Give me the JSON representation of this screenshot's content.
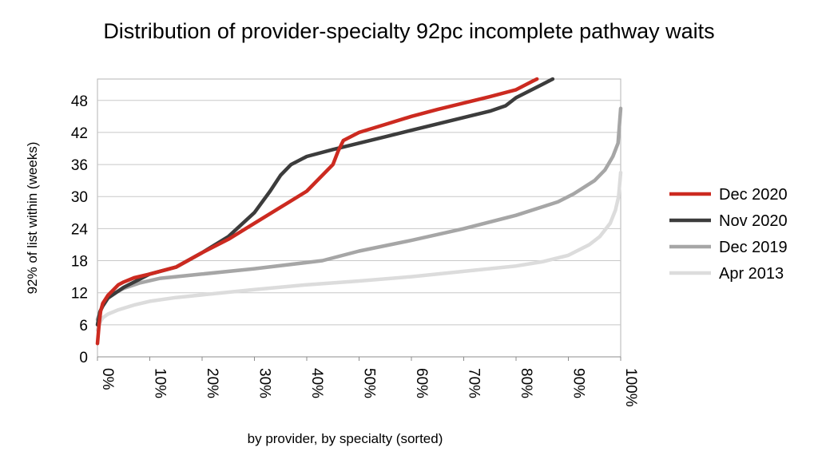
{
  "chart_data": {
    "type": "line",
    "title": "Distribution of provider-specialty 92pc incomplete pathway waits",
    "xlabel": "by provider, by specialty (sorted)",
    "ylabel": "92% of list within (weeks)",
    "xlim": [
      0,
      100
    ],
    "ylim": [
      0,
      52
    ],
    "x_ticks": [
      0,
      10,
      20,
      30,
      40,
      50,
      60,
      70,
      80,
      90,
      100
    ],
    "x_tick_labels": [
      "0%",
      "10%",
      "20%",
      "30%",
      "40%",
      "50%",
      "60%",
      "70%",
      "80%",
      "90%",
      "100%"
    ],
    "y_ticks": [
      0,
      6,
      12,
      18,
      24,
      30,
      36,
      42,
      48
    ],
    "y_tick_labels": [
      "0",
      "6",
      "12",
      "18",
      "24",
      "30",
      "36",
      "42",
      "48"
    ],
    "grid": "horizontal",
    "legend_position": "right",
    "series": [
      {
        "name": "Dec 2020",
        "color": "#cc2a20",
        "points": [
          [
            0,
            2.5
          ],
          [
            0.3,
            6
          ],
          [
            0.6,
            8.5
          ],
          [
            1,
            10
          ],
          [
            2,
            11.5
          ],
          [
            3,
            12.5
          ],
          [
            4,
            13.5
          ],
          [
            5,
            14
          ],
          [
            7,
            14.8
          ],
          [
            10,
            15.5
          ],
          [
            15,
            16.8
          ],
          [
            20,
            19.5
          ],
          [
            25,
            22
          ],
          [
            30,
            25
          ],
          [
            35,
            28
          ],
          [
            40,
            31
          ],
          [
            45,
            36
          ],
          [
            46,
            38.5
          ],
          [
            47,
            40.5
          ],
          [
            50,
            42
          ],
          [
            55,
            43.5
          ],
          [
            60,
            45
          ],
          [
            65,
            46.3
          ],
          [
            70,
            47.5
          ],
          [
            75,
            48.7
          ],
          [
            80,
            50
          ],
          [
            83,
            51.5
          ],
          [
            84,
            52
          ]
        ]
      },
      {
        "name": "Nov 2020",
        "color": "#3c3c3c",
        "points": [
          [
            0,
            6
          ],
          [
            0.5,
            8.5
          ],
          [
            1,
            9.5
          ],
          [
            2,
            11
          ],
          [
            5,
            13
          ],
          [
            10,
            15.5
          ],
          [
            15,
            16.8
          ],
          [
            20,
            19.5
          ],
          [
            25,
            22.5
          ],
          [
            30,
            27
          ],
          [
            33,
            31
          ],
          [
            35,
            34
          ],
          [
            37,
            36
          ],
          [
            40,
            37.5
          ],
          [
            45,
            38.8
          ],
          [
            50,
            40
          ],
          [
            55,
            41.2
          ],
          [
            60,
            42.4
          ],
          [
            65,
            43.6
          ],
          [
            70,
            44.8
          ],
          [
            75,
            46
          ],
          [
            78,
            47
          ],
          [
            80,
            48.5
          ],
          [
            82,
            49.5
          ],
          [
            85,
            51
          ],
          [
            87,
            52
          ]
        ]
      },
      {
        "name": "Dec 2019",
        "color": "#a6a6a6",
        "points": [
          [
            0,
            7
          ],
          [
            0.5,
            8.5
          ],
          [
            1,
            9.5
          ],
          [
            2,
            11
          ],
          [
            3,
            11.8
          ],
          [
            5,
            12.8
          ],
          [
            8,
            13.8
          ],
          [
            12,
            14.7
          ],
          [
            20,
            15.5
          ],
          [
            30,
            16.5
          ],
          [
            43,
            18
          ],
          [
            50,
            19.8
          ],
          [
            60,
            21.8
          ],
          [
            70,
            24
          ],
          [
            80,
            26.5
          ],
          [
            88,
            29
          ],
          [
            91,
            30.5
          ],
          [
            95,
            33
          ],
          [
            97,
            35
          ],
          [
            98.5,
            37.5
          ],
          [
            99.5,
            40
          ],
          [
            100,
            46.5
          ]
        ]
      },
      {
        "name": "Apr 2013",
        "color": "#dcdcdc",
        "points": [
          [
            0,
            5
          ],
          [
            0.5,
            6.5
          ],
          [
            1,
            7.3
          ],
          [
            2,
            8
          ],
          [
            4,
            8.8
          ],
          [
            7,
            9.7
          ],
          [
            10,
            10.4
          ],
          [
            15,
            11.1
          ],
          [
            20,
            11.6
          ],
          [
            30,
            12.6
          ],
          [
            40,
            13.5
          ],
          [
            50,
            14.2
          ],
          [
            60,
            15
          ],
          [
            70,
            16
          ],
          [
            80,
            17
          ],
          [
            85,
            17.8
          ],
          [
            90,
            19
          ],
          [
            94,
            21
          ],
          [
            96,
            22.5
          ],
          [
            98,
            25
          ],
          [
            99,
            27.5
          ],
          [
            99.6,
            30
          ],
          [
            100,
            34.5
          ]
        ]
      }
    ]
  }
}
